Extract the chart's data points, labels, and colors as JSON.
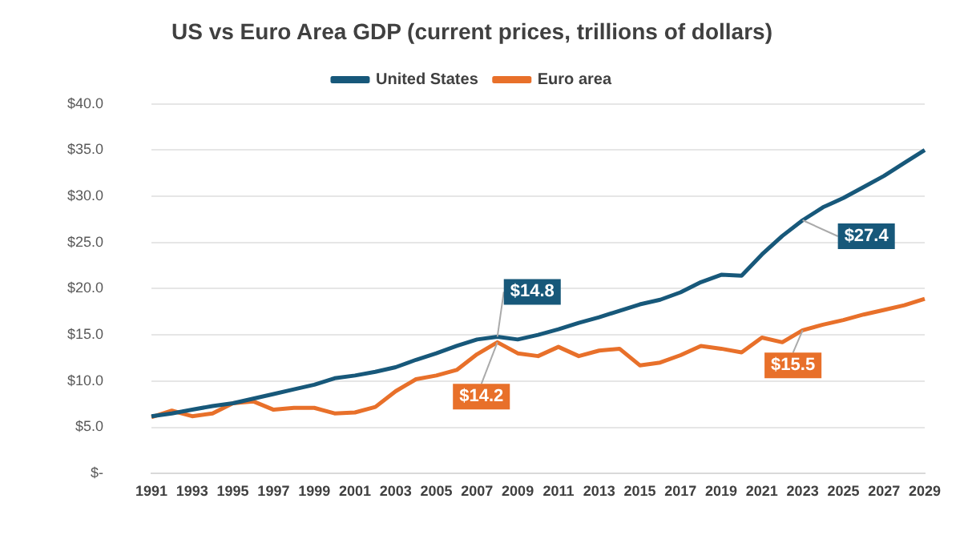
{
  "chart_data": {
    "type": "line",
    "title": "US vs Euro Area GDP (current prices, trillions of dollars)",
    "categories": [
      "1991",
      null,
      "1993",
      null,
      "1995",
      null,
      "1997",
      null,
      "1999",
      null,
      "2001",
      null,
      "2003",
      null,
      "2005",
      null,
      "2007",
      null,
      "2009",
      null,
      "2011",
      null,
      "2013",
      null,
      "2015",
      null,
      "2017",
      null,
      "2019",
      null,
      "2021",
      null,
      "2023",
      null,
      "2025",
      null,
      "2027",
      null,
      "2029"
    ],
    "series": [
      {
        "name": "United States",
        "color": "#17587a",
        "values": [
          6.2,
          6.5,
          6.9,
          7.3,
          7.6,
          8.1,
          8.6,
          9.1,
          9.6,
          10.3,
          10.6,
          11.0,
          11.5,
          12.3,
          13.0,
          13.8,
          14.5,
          14.8,
          14.5,
          15.0,
          15.6,
          16.3,
          16.9,
          17.6,
          18.3,
          18.8,
          19.6,
          20.7,
          21.5,
          21.4,
          23.7,
          25.7,
          27.4,
          28.8,
          29.8,
          31.0,
          32.2,
          33.6,
          35.0
        ],
        "value_labels": [
          null,
          null,
          null,
          null,
          null,
          null,
          null,
          null,
          null,
          null,
          null,
          null,
          null,
          null,
          null,
          null,
          null,
          "$14.8",
          null,
          null,
          null,
          null,
          null,
          null,
          null,
          null,
          null,
          null,
          null,
          null,
          null,
          null,
          "$27.4",
          null,
          null,
          null,
          null,
          null,
          null
        ]
      },
      {
        "name": "Euro area",
        "color": "#e8702a",
        "values": [
          6.1,
          6.8,
          6.2,
          6.5,
          7.6,
          7.8,
          6.9,
          7.1,
          7.1,
          6.5,
          6.6,
          7.2,
          8.9,
          10.2,
          10.6,
          11.2,
          12.9,
          14.2,
          13.0,
          12.7,
          13.7,
          12.7,
          13.3,
          13.5,
          11.7,
          12.0,
          12.8,
          13.8,
          13.5,
          13.1,
          14.7,
          14.2,
          15.5,
          16.1,
          16.6,
          17.2,
          17.7,
          18.2,
          18.9
        ],
        "value_labels": [
          null,
          null,
          null,
          null,
          null,
          null,
          null,
          null,
          null,
          null,
          null,
          null,
          null,
          null,
          null,
          null,
          null,
          "$14.2",
          null,
          null,
          null,
          null,
          null,
          null,
          null,
          null,
          null,
          null,
          null,
          null,
          null,
          null,
          "$15.5",
          null,
          null,
          null,
          null,
          null,
          null
        ]
      }
    ],
    "ylim": [
      0,
      40
    ],
    "yticks": [
      {
        "value": 0,
        "label": "$-"
      },
      {
        "value": 5,
        "label": "$5.0"
      },
      {
        "value": 10,
        "label": "$10.0"
      },
      {
        "value": 15,
        "label": "$15.0"
      },
      {
        "value": 20,
        "label": "$20.0"
      },
      {
        "value": 25,
        "label": "$25.0"
      },
      {
        "value": 30,
        "label": "$30.0"
      },
      {
        "value": 35,
        "label": "$35.0"
      },
      {
        "value": 40,
        "label": "$40.0"
      }
    ],
    "grid": "y",
    "legend": "top",
    "marker": "none",
    "line_style": "solid"
  }
}
